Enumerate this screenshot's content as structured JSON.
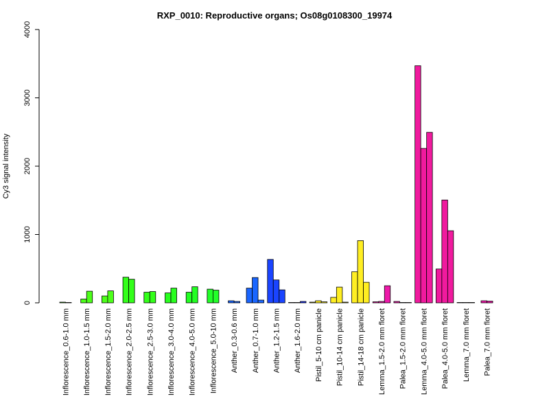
{
  "chart_data": {
    "type": "bar",
    "title": "RXP_0010: Reproductive organs; Os08g0108300_19974",
    "xlabel": "",
    "ylabel": "Cy3 signal intensity",
    "ylim": [
      0,
      4000
    ],
    "yticks": [
      "0",
      "1000",
      "2000",
      "3000",
      "4000"
    ],
    "ytick_values": [
      0,
      1000,
      2000,
      3000,
      4000
    ],
    "grid": false,
    "legend": "none",
    "groups": [
      {
        "label": "Inflorescence_0.6-1.0 mm",
        "color": "#4dff1a",
        "values": [
          10,
          5
        ]
      },
      {
        "label": "Inflorescence_1.0-1.5 mm",
        "color": "#4dff1a",
        "values": [
          55,
          170
        ]
      },
      {
        "label": "Inflorescence_1.5-2.0 mm",
        "color": "#4dff1a",
        "values": [
          100,
          175
        ]
      },
      {
        "label": "Inflorescence_2.0-2.5 mm",
        "color": "#33ff1a",
        "values": [
          375,
          345
        ]
      },
      {
        "label": "Inflorescence_2.5-3.0 mm",
        "color": "#33ff1a",
        "values": [
          155,
          165
        ]
      },
      {
        "label": "Inflorescence_3.0-4.0 mm",
        "color": "#29ff1f",
        "values": [
          145,
          215
        ]
      },
      {
        "label": "Inflorescence_4.0-5.0 mm",
        "color": "#22ff22",
        "values": [
          155,
          235
        ]
      },
      {
        "label": "Inflorescence_5.0-10 mm",
        "color": "#22ff29",
        "values": [
          200,
          185
        ]
      },
      {
        "label": "Anther_0.3-0.6 mm",
        "color": "#1a66ff",
        "values": [
          30,
          20
        ]
      },
      {
        "label": "Anther_0.7-1.0 mm",
        "color": "#1a66ff",
        "values": [
          215,
          370,
          40
        ]
      },
      {
        "label": "Anther_1.2-1.5 mm",
        "color": "#1a44ff",
        "values": [
          635,
          335,
          190
        ]
      },
      {
        "label": "Anther_1.6-2.0 mm",
        "color": "#1a33ff",
        "values": [
          5,
          5,
          20
        ]
      },
      {
        "label": "Pistil_5-10 cm panicle",
        "color": "#ffee22",
        "values": [
          10,
          30,
          15
        ]
      },
      {
        "label": "Pistil_10-14 cm panicle",
        "color": "#ffee22",
        "values": [
          80,
          230,
          10
        ]
      },
      {
        "label": "Pistil_14-18 cm panicle",
        "color": "#ffee22",
        "values": [
          455,
          910,
          300
        ]
      },
      {
        "label": "Lemma_1.5-2.0 mm floret",
        "color": "#ee1aaa",
        "values": [
          15,
          20,
          250
        ]
      },
      {
        "label": "Palea_1.5-2.0 mm floret",
        "color": "#ee1aaa",
        "values": [
          20,
          5,
          5
        ]
      },
      {
        "label": "Lemma_4.0-5.0 mm floret",
        "color": "#f01a9e",
        "values": [
          3470,
          2260,
          2495
        ]
      },
      {
        "label": "Palea_4.0-5.0 mm floret",
        "color": "#f01a9e",
        "values": [
          495,
          1505,
          1055
        ]
      },
      {
        "label": "Lemma_7.0 mm floret",
        "color": "#ee1aaa",
        "values": [
          5,
          5,
          5
        ]
      },
      {
        "label": "Palea_7.0 mm floret",
        "color": "#ee1aaa",
        "values": [
          30,
          25
        ]
      }
    ]
  }
}
